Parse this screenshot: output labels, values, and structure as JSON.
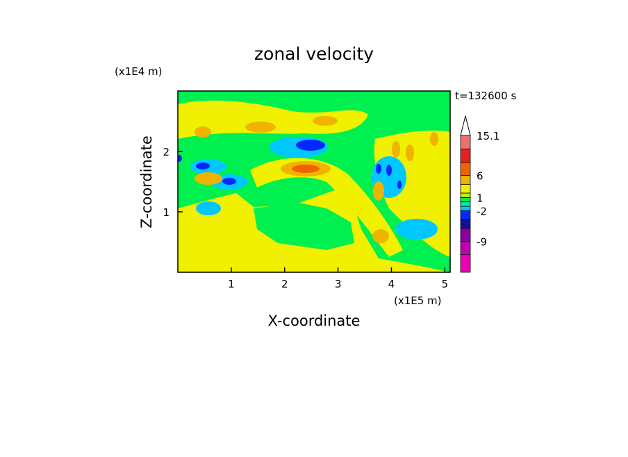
{
  "chart_data": {
    "type": "contour",
    "title": "zonal velocity",
    "x_label": "X-coordinate",
    "y_label": "Z-coordinate",
    "x_scale_label": "(x1E5 m)",
    "y_scale_label": "(x1E4 m)",
    "time_label": "t=132600 s",
    "xlim": [
      0,
      5.1
    ],
    "xticks": [
      1,
      2,
      3,
      4,
      5
    ],
    "ylim": [
      0,
      3
    ],
    "yticks": [
      1,
      2
    ],
    "colorbar": {
      "lim": [
        -16,
        15.1
      ],
      "levels": [
        -16,
        -12,
        -9,
        -6,
        -4,
        -2,
        -1,
        0,
        1,
        2,
        4,
        6,
        9,
        12,
        15.1
      ],
      "colors": [
        "#f000b4",
        "#c000b4",
        "#8c00a0",
        "#1010a0",
        "#0028ff",
        "#00c8ff",
        "#00f0a0",
        "#00f050",
        "#c8f000",
        "#f0f000",
        "#f0b400",
        "#f06400",
        "#e62020",
        "#f07070"
      ],
      "ticks": [
        15.1,
        6,
        1,
        -2,
        -9
      ]
    }
  }
}
